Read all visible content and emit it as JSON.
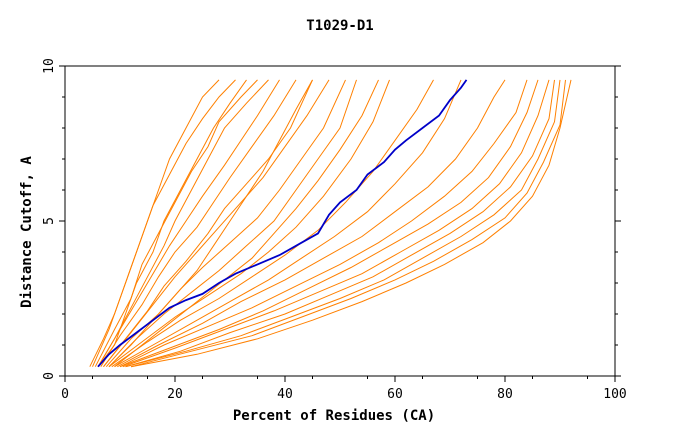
{
  "chart_data": {
    "type": "line",
    "title": "T1029-D1",
    "xlabel": "Percent of Residues (CA)",
    "ylabel": "Distance Cutoff, A",
    "xlim": [
      0,
      100
    ],
    "ylim": [
      0,
      10
    ],
    "x_ticks": [
      0,
      20,
      40,
      60,
      80,
      100
    ],
    "y_ticks": [
      0,
      5,
      10
    ],
    "grid": false,
    "colors": {
      "highlight": "#0000c8",
      "others": "#ff8000",
      "axis": "#000000"
    },
    "highlight_series": {
      "points": [
        [
          6,
          0.3
        ],
        [
          8,
          0.7
        ],
        [
          10,
          1.0
        ],
        [
          13,
          1.4
        ],
        [
          16,
          1.8
        ],
        [
          19,
          2.2
        ],
        [
          22,
          2.45
        ],
        [
          25,
          2.65
        ],
        [
          28,
          3.0
        ],
        [
          31,
          3.3
        ],
        [
          35,
          3.6
        ],
        [
          39,
          3.9
        ],
        [
          43,
          4.3
        ],
        [
          46,
          4.6
        ],
        [
          48,
          5.2
        ],
        [
          50,
          5.6
        ],
        [
          53,
          6.0
        ],
        [
          55,
          6.5
        ],
        [
          58,
          6.9
        ],
        [
          60,
          7.3
        ],
        [
          62,
          7.6
        ],
        [
          65,
          8.0
        ],
        [
          68,
          8.4
        ],
        [
          70,
          8.9
        ],
        [
          72,
          9.3
        ],
        [
          73,
          9.55
        ]
      ]
    },
    "other_series": [
      {
        "points": [
          [
            4.5,
            0.3
          ],
          [
            7,
            1.2
          ],
          [
            9,
            2.0
          ],
          [
            11,
            3.0
          ],
          [
            13,
            4.0
          ],
          [
            15,
            5.0
          ],
          [
            17,
            6.0
          ],
          [
            19,
            7.0
          ],
          [
            22,
            8.0
          ],
          [
            25,
            9.0
          ],
          [
            28,
            9.55
          ]
        ]
      },
      {
        "points": [
          [
            5,
            0.3
          ],
          [
            8,
            1.5
          ],
          [
            10,
            2.5
          ],
          [
            12,
            3.5
          ],
          [
            14,
            4.5
          ],
          [
            16,
            5.5
          ],
          [
            19,
            6.5
          ],
          [
            22,
            7.5
          ],
          [
            25,
            8.3
          ],
          [
            28,
            9.0
          ],
          [
            31,
            9.55
          ]
        ]
      },
      {
        "points": [
          [
            5.5,
            0.3
          ],
          [
            9,
            1.5
          ],
          [
            12,
            2.5
          ],
          [
            14,
            3.6
          ],
          [
            17,
            4.6
          ],
          [
            20,
            5.6
          ],
          [
            23,
            6.6
          ],
          [
            26,
            7.4
          ],
          [
            28,
            8.2
          ],
          [
            32,
            9.0
          ],
          [
            35,
            9.55
          ]
        ]
      },
      {
        "points": [
          [
            6,
            0.3
          ],
          [
            9,
            1.2
          ],
          [
            12,
            2.2
          ],
          [
            15,
            3.2
          ],
          [
            18,
            4.2
          ],
          [
            20,
            5.0
          ],
          [
            23,
            6.0
          ],
          [
            26,
            7.0
          ],
          [
            29,
            8.0
          ],
          [
            33,
            8.8
          ],
          [
            37,
            9.55
          ]
        ]
      },
      {
        "points": [
          [
            6,
            0.3
          ],
          [
            10,
            1.5
          ],
          [
            13,
            2.4
          ],
          [
            16,
            3.3
          ],
          [
            19,
            4.2
          ],
          [
            22,
            5.0
          ],
          [
            25,
            5.8
          ],
          [
            29,
            6.8
          ],
          [
            32,
            7.6
          ],
          [
            35,
            8.4
          ],
          [
            39,
            9.55
          ]
        ]
      },
      {
        "points": [
          [
            6.5,
            0.3
          ],
          [
            10,
            1.3
          ],
          [
            14,
            2.3
          ],
          [
            17,
            3.2
          ],
          [
            20,
            4.0
          ],
          [
            24,
            4.8
          ],
          [
            27,
            5.6
          ],
          [
            30,
            6.4
          ],
          [
            34,
            7.4
          ],
          [
            38,
            8.4
          ],
          [
            42,
            9.55
          ]
        ]
      },
      {
        "points": [
          [
            7,
            0.3
          ],
          [
            11,
            1.2
          ],
          [
            15,
            2.1
          ],
          [
            18,
            2.9
          ],
          [
            22,
            3.7
          ],
          [
            26,
            4.6
          ],
          [
            29,
            5.4
          ],
          [
            33,
            6.2
          ],
          [
            37,
            7.0
          ],
          [
            41,
            8.0
          ],
          [
            45,
            9.55
          ]
        ]
      },
      {
        "points": [
          [
            7,
            0.3
          ],
          [
            12,
            1.4
          ],
          [
            16,
            2.3
          ],
          [
            20,
            3.2
          ],
          [
            24,
            4.0
          ],
          [
            28,
            4.8
          ],
          [
            32,
            5.6
          ],
          [
            36,
            6.4
          ],
          [
            40,
            7.4
          ],
          [
            44,
            8.4
          ],
          [
            48,
            9.55
          ]
        ]
      },
      {
        "points": [
          [
            7.5,
            0.3
          ],
          [
            12,
            1.2
          ],
          [
            17,
            2.0
          ],
          [
            21,
            2.8
          ],
          [
            25,
            3.5
          ],
          [
            30,
            4.3
          ],
          [
            35,
            5.1
          ],
          [
            39,
            6.0
          ],
          [
            43,
            7.0
          ],
          [
            47,
            8.0
          ],
          [
            51,
            9.55
          ]
        ]
      },
      {
        "points": [
          [
            8,
            0.3
          ],
          [
            13,
            1.2
          ],
          [
            18,
            2.0
          ],
          [
            23,
            2.7
          ],
          [
            28,
            3.4
          ],
          [
            33,
            4.2
          ],
          [
            38,
            5.0
          ],
          [
            42,
            6.0
          ],
          [
            46,
            7.0
          ],
          [
            50,
            8.0
          ],
          [
            53,
            9.55
          ]
        ]
      },
      {
        "points": [
          [
            8,
            0.3
          ],
          [
            14,
            1.1
          ],
          [
            20,
            1.9
          ],
          [
            26,
            2.6
          ],
          [
            32,
            3.3
          ],
          [
            37,
            4.0
          ],
          [
            42,
            4.8
          ],
          [
            47,
            5.8
          ],
          [
            52,
            7.0
          ],
          [
            56,
            8.2
          ],
          [
            59,
            9.55
          ]
        ]
      },
      {
        "points": [
          [
            8.5,
            0.3
          ],
          [
            15,
            1.1
          ],
          [
            21,
            1.8
          ],
          [
            28,
            2.5
          ],
          [
            34,
            3.2
          ],
          [
            40,
            3.9
          ],
          [
            46,
            4.7
          ],
          [
            51,
            5.6
          ],
          [
            56,
            6.6
          ],
          [
            60,
            7.6
          ],
          [
            64,
            8.6
          ],
          [
            67,
            9.55
          ]
        ]
      },
      {
        "points": [
          [
            9,
            0.3
          ],
          [
            16,
            1.0
          ],
          [
            23,
            1.7
          ],
          [
            30,
            2.4
          ],
          [
            37,
            3.1
          ],
          [
            43,
            3.8
          ],
          [
            49,
            4.5
          ],
          [
            55,
            5.3
          ],
          [
            60,
            6.2
          ],
          [
            65,
            7.2
          ],
          [
            69,
            8.3
          ],
          [
            72,
            9.55
          ]
        ]
      },
      {
        "points": [
          [
            9.5,
            0.3
          ],
          [
            17,
            1.0
          ],
          [
            25,
            1.7
          ],
          [
            32,
            2.4
          ],
          [
            40,
            3.1
          ],
          [
            47,
            3.8
          ],
          [
            54,
            4.5
          ],
          [
            60,
            5.3
          ],
          [
            66,
            6.1
          ],
          [
            71,
            7.0
          ],
          [
            75,
            8.0
          ],
          [
            78,
            9.0
          ],
          [
            80,
            9.55
          ]
        ]
      },
      {
        "points": [
          [
            10,
            0.3
          ],
          [
            18,
            1.0
          ],
          [
            26,
            1.6
          ],
          [
            34,
            2.2
          ],
          [
            42,
            2.9
          ],
          [
            50,
            3.6
          ],
          [
            57,
            4.3
          ],
          [
            63,
            5.0
          ],
          [
            69,
            5.8
          ],
          [
            74,
            6.6
          ],
          [
            78,
            7.5
          ],
          [
            82,
            8.5
          ],
          [
            84,
            9.55
          ]
        ]
      },
      {
        "points": [
          [
            10,
            0.3
          ],
          [
            19,
            0.9
          ],
          [
            28,
            1.5
          ],
          [
            36,
            2.1
          ],
          [
            44,
            2.8
          ],
          [
            52,
            3.5
          ],
          [
            59,
            4.2
          ],
          [
            66,
            4.9
          ],
          [
            72,
            5.6
          ],
          [
            77,
            6.4
          ],
          [
            81,
            7.4
          ],
          [
            84,
            8.5
          ],
          [
            86,
            9.55
          ]
        ]
      },
      {
        "points": [
          [
            10.5,
            0.3
          ],
          [
            20,
            0.9
          ],
          [
            29,
            1.5
          ],
          [
            38,
            2.1
          ],
          [
            46,
            2.7
          ],
          [
            54,
            3.3
          ],
          [
            61,
            4.0
          ],
          [
            68,
            4.7
          ],
          [
            74,
            5.4
          ],
          [
            79,
            6.2
          ],
          [
            83,
            7.2
          ],
          [
            86,
            8.4
          ],
          [
            88,
            9.55
          ]
        ]
      },
      {
        "points": [
          [
            11,
            0.3
          ],
          [
            21,
            0.8
          ],
          [
            30,
            1.4
          ],
          [
            40,
            2.0
          ],
          [
            48,
            2.6
          ],
          [
            56,
            3.2
          ],
          [
            63,
            3.9
          ],
          [
            70,
            4.6
          ],
          [
            76,
            5.3
          ],
          [
            81,
            6.1
          ],
          [
            85,
            7.1
          ],
          [
            88,
            8.3
          ],
          [
            89,
            9.55
          ]
        ]
      },
      {
        "points": [
          [
            11,
            0.3
          ],
          [
            22,
            0.8
          ],
          [
            32,
            1.3
          ],
          [
            41,
            1.9
          ],
          [
            50,
            2.5
          ],
          [
            58,
            3.1
          ],
          [
            65,
            3.8
          ],
          [
            72,
            4.5
          ],
          [
            78,
            5.2
          ],
          [
            83,
            6.0
          ],
          [
            86,
            7.0
          ],
          [
            89,
            8.2
          ],
          [
            90,
            9.55
          ]
        ]
      },
      {
        "points": [
          [
            12,
            0.3
          ],
          [
            23,
            0.8
          ],
          [
            34,
            1.3
          ],
          [
            43,
            1.9
          ],
          [
            52,
            2.5
          ],
          [
            60,
            3.1
          ],
          [
            67,
            3.7
          ],
          [
            74,
            4.4
          ],
          [
            80,
            5.1
          ],
          [
            84,
            5.9
          ],
          [
            87,
            6.9
          ],
          [
            90,
            8.1
          ],
          [
            91,
            9.55
          ]
        ]
      },
      {
        "points": [
          [
            12,
            0.3
          ],
          [
            24,
            0.7
          ],
          [
            35,
            1.2
          ],
          [
            45,
            1.8
          ],
          [
            54,
            2.4
          ],
          [
            62,
            3.0
          ],
          [
            69,
            3.6
          ],
          [
            76,
            4.3
          ],
          [
            81,
            5.0
          ],
          [
            85,
            5.8
          ],
          [
            88,
            6.8
          ],
          [
            90,
            8.0
          ],
          [
            92,
            9.55
          ]
        ]
      },
      {
        "points": [
          [
            8,
            0.3
          ],
          [
            12,
            1.0
          ],
          [
            16,
            1.8
          ],
          [
            20,
            2.6
          ],
          [
            24,
            3.4
          ],
          [
            27,
            4.2
          ],
          [
            30,
            5.0
          ],
          [
            33,
            5.8
          ],
          [
            36,
            6.6
          ],
          [
            39,
            7.6
          ],
          [
            42,
            8.6
          ],
          [
            45,
            9.55
          ]
        ]
      },
      {
        "points": [
          [
            9,
            0.3
          ],
          [
            14,
            1.0
          ],
          [
            19,
            1.7
          ],
          [
            24,
            2.4
          ],
          [
            29,
            3.1
          ],
          [
            34,
            3.8
          ],
          [
            38,
            4.6
          ],
          [
            42,
            5.4
          ],
          [
            46,
            6.3
          ],
          [
            50,
            7.3
          ],
          [
            54,
            8.4
          ],
          [
            57,
            9.55
          ]
        ]
      },
      {
        "points": [
          [
            6,
            0.3
          ],
          [
            9,
            1.0
          ],
          [
            11,
            2.0
          ],
          [
            13,
            3.0
          ],
          [
            16,
            4.0
          ],
          [
            18,
            5.0
          ],
          [
            21,
            6.0
          ],
          [
            24,
            7.0
          ],
          [
            27,
            8.0
          ],
          [
            30,
            8.8
          ],
          [
            33,
            9.55
          ]
        ]
      }
    ]
  }
}
